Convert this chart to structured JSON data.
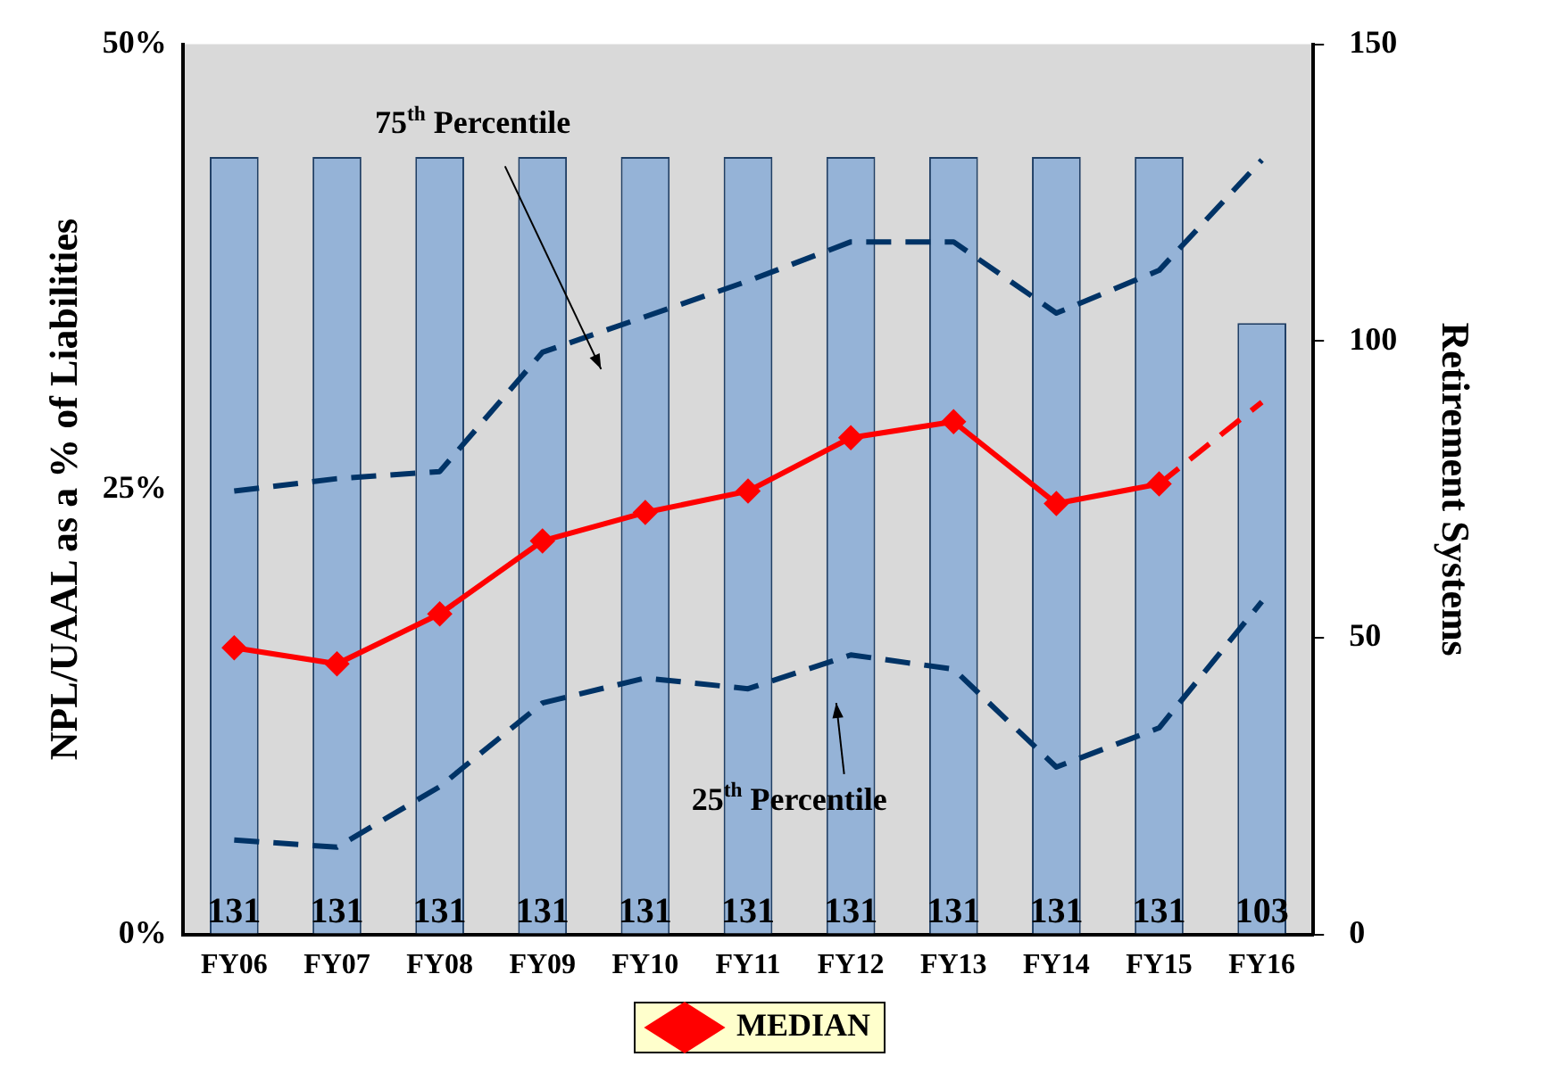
{
  "chart_data": {
    "type": "bar",
    "ylabel": "NPL/UAAL as a % of Liabilities",
    "y2label": "Retirement Systems",
    "categories": [
      "FY06",
      "FY07",
      "FY08",
      "FY09",
      "FY10",
      "FY11",
      "FY12",
      "FY13",
      "FY14",
      "FY15",
      "FY16"
    ],
    "series": [
      {
        "axis": "y2",
        "color": "#95b3d7",
        "values": [
          131,
          131,
          131,
          131,
          131,
          131,
          131,
          131,
          131,
          131,
          103
        ],
        "value_labels": [
          "131",
          "131",
          "131",
          "131",
          "131",
          "131",
          "131",
          "131",
          "131",
          "131",
          "103"
        ]
      },
      {
        "type": "line",
        "name": "MEDIAN",
        "color": "#ff0000",
        "marker": "diamond",
        "line_style": "solid",
        "values": [
          16.1,
          15.2,
          18.0,
          22.1,
          23.7,
          24.9,
          27.9,
          28.8,
          24.2,
          25.3,
          null
        ]
      },
      {
        "type": "line",
        "color": "#ff0000",
        "marker": "none",
        "line_style": "dashed",
        "values": [
          null,
          null,
          null,
          null,
          null,
          null,
          null,
          null,
          null,
          25.3,
          29.9
        ]
      },
      {
        "type": "line",
        "color": "#003366",
        "marker": "none",
        "line_style": "dashed",
        "values": [
          24.9,
          25.6,
          26.0,
          32.7,
          34.7,
          36.7,
          38.9,
          38.9,
          34.9,
          37.3,
          43.5
        ]
      },
      {
        "type": "line",
        "color": "#003366",
        "marker": "none",
        "line_style": "dashed",
        "values": [
          5.3,
          4.9,
          8.3,
          13.0,
          14.4,
          13.8,
          15.7,
          14.9,
          9.4,
          11.6,
          18.7
        ]
      }
    ],
    "ylim": [
      0,
      50
    ],
    "yticks": [
      {
        "value": 0,
        "label": "0%"
      },
      {
        "value": 25,
        "label": "25%"
      },
      {
        "value": 50,
        "label": "50%"
      }
    ],
    "y2lim": [
      0,
      150
    ],
    "y2ticks": [
      0,
      50,
      100,
      150
    ],
    "grid": false,
    "legend": "bottom",
    "annotations": [
      "75$^{th}$ Percentile",
      "25$^{th}$ Percentile"
    ]
  }
}
